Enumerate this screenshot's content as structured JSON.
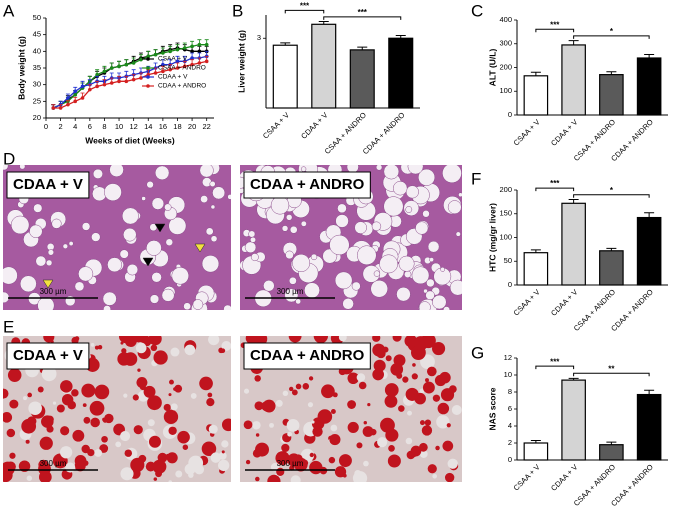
{
  "chart_data": [
    {
      "type": "line",
      "panel": "A",
      "x_label": "Weeks of diet (Weeks)",
      "y_label": "Body weight (g)",
      "x": [
        1,
        2,
        3,
        4,
        5,
        6,
        7,
        8,
        9,
        10,
        11,
        12,
        13,
        14,
        15,
        16,
        17,
        18,
        19,
        20,
        21,
        22
      ],
      "xlim": [
        0,
        23
      ],
      "xticks": [
        0,
        2,
        4,
        6,
        8,
        10,
        12,
        14,
        16,
        18,
        20,
        22
      ],
      "ylim": [
        20,
        50
      ],
      "yticks": [
        20,
        25,
        30,
        35,
        40,
        45,
        50
      ],
      "legend": "lower right",
      "series": [
        {
          "name": "CSAA + V",
          "color": "#000000",
          "values": [
            23,
            24,
            25.5,
            27,
            29,
            31,
            32.5,
            33.5,
            35,
            35.5,
            36,
            37,
            38,
            38.5,
            39,
            40,
            40.5,
            41,
            40.5,
            40,
            40,
            40
          ],
          "errors": [
            1,
            1,
            1.2,
            1.2,
            1.5,
            1.5,
            1.5,
            1.5,
            1.5,
            1.5,
            1.5,
            1.5,
            1.5,
            1.5,
            1.5,
            1.5,
            1.5,
            1.5,
            1.5,
            1.5,
            1.5,
            1.5
          ]
        },
        {
          "name": "CSAA + ANDRO",
          "color": "#1a8a1a",
          "values": [
            23,
            24,
            25,
            27,
            29,
            31,
            33,
            34,
            35,
            35.5,
            36,
            36.5,
            37.5,
            38.5,
            39,
            39.5,
            40,
            40.5,
            41,
            41.5,
            42,
            42
          ],
          "errors": [
            1,
            1,
            1.2,
            1.2,
            1.5,
            1.5,
            1.5,
            1.5,
            1.5,
            1.5,
            1.5,
            1.5,
            1.5,
            1.5,
            1.5,
            1.5,
            1.5,
            1.5,
            1.5,
            1.5,
            1.5,
            1.5
          ]
        },
        {
          "name": "CDAA + V",
          "color": "#1f2fd0",
          "values": [
            23,
            24,
            26,
            28,
            29.5,
            30,
            31,
            31,
            32,
            32,
            32.5,
            33,
            33.5,
            34,
            35,
            36,
            36,
            37,
            37,
            38,
            38,
            38.5
          ],
          "errors": [
            1,
            1,
            1.2,
            1.2,
            1.5,
            1.5,
            1.5,
            1.5,
            1.5,
            1.5,
            1.5,
            1.5,
            1.5,
            1.5,
            1.5,
            1.5,
            1.5,
            1.5,
            1.5,
            1.5,
            1.5,
            1.5
          ]
        },
        {
          "name": "CDAA + ANDRO",
          "color": "#d42020",
          "values": [
            23,
            23,
            24,
            25,
            26,
            28.5,
            29.5,
            30,
            30.5,
            31,
            31,
            31.5,
            32,
            33,
            33.5,
            34,
            34.5,
            35,
            35.5,
            36,
            36.5,
            37
          ],
          "errors": [
            1,
            1,
            1.2,
            1.2,
            1.5,
            1.5,
            1.5,
            1.5,
            1.5,
            1.5,
            1.5,
            1.5,
            1.5,
            1.5,
            1.5,
            1.5,
            1.5,
            1.5,
            1.5,
            1.5,
            1.5,
            1.5
          ]
        }
      ]
    },
    {
      "type": "bar",
      "panel": "B",
      "y_label": "Liver weight (g)",
      "categories": [
        "CSAA + V",
        "CDAA + V",
        "CSAA + ANDRO",
        "CDAA + ANDRO"
      ],
      "values": [
        2.7,
        3.6,
        2.5,
        3.0
      ],
      "errors": [
        0.1,
        0.12,
        0.12,
        0.12
      ],
      "colors": [
        "#ffffff",
        "#d4d4d4",
        "#5a5a5a",
        "#000000"
      ],
      "ylim": [
        0,
        4
      ],
      "yticks": [
        3
      ],
      "brackets": [
        {
          "between": [
            "CSAA + V",
            "CDAA + V"
          ],
          "label": "***"
        },
        {
          "between": [
            "CDAA + V",
            "CDAA + ANDRO"
          ],
          "label": "***"
        }
      ]
    },
    {
      "type": "bar",
      "panel": "C",
      "y_label": "ALT (U/L)",
      "categories": [
        "CSAA + V",
        "CDAA + V",
        "CSAA + ANDRO",
        "CDAA + ANDRO"
      ],
      "values": [
        165,
        295,
        170,
        240
      ],
      "errors": [
        15,
        18,
        12,
        15
      ],
      "colors": [
        "#ffffff",
        "#d4d4d4",
        "#5a5a5a",
        "#000000"
      ],
      "ylim": [
        0,
        400
      ],
      "yticks": [
        0,
        100,
        200,
        300,
        400
      ],
      "brackets": [
        {
          "between": [
            "CSAA + V",
            "CDAA + V"
          ],
          "label": "***"
        },
        {
          "between": [
            "CDAA + V",
            "CDAA + ANDRO"
          ],
          "label": "*"
        }
      ]
    },
    {
      "type": "bar",
      "panel": "F",
      "y_label": "HTC (mg/gr liver)",
      "categories": [
        "CSAA + V",
        "CDAA + V",
        "CSAA + ANDRO",
        "CDAA + ANDRO"
      ],
      "values": [
        68,
        172,
        72,
        142
      ],
      "errors": [
        6,
        8,
        5,
        10
      ],
      "colors": [
        "#ffffff",
        "#d4d4d4",
        "#5a5a5a",
        "#000000"
      ],
      "ylim": [
        0,
        200
      ],
      "yticks": [
        0,
        50,
        100,
        150,
        200
      ],
      "brackets": [
        {
          "between": [
            "CSAA + V",
            "CDAA + V"
          ],
          "label": "***"
        },
        {
          "between": [
            "CDAA + V",
            "CDAA + ANDRO"
          ],
          "label": "*"
        }
      ]
    },
    {
      "type": "bar",
      "panel": "G",
      "y_label": "NAS score",
      "categories": [
        "CSAA + V",
        "CDAA + V",
        "CSAA + ANDRO",
        "CDAA + ANDRO"
      ],
      "values": [
        2.0,
        9.4,
        1.8,
        7.7
      ],
      "errors": [
        0.3,
        0.2,
        0.3,
        0.5
      ],
      "colors": [
        "#ffffff",
        "#d4d4d4",
        "#5a5a5a",
        "#000000"
      ],
      "ylim": [
        0,
        12
      ],
      "yticks": [
        0,
        2,
        4,
        6,
        8,
        10,
        12
      ],
      "brackets": [
        {
          "between": [
            "CSAA + V",
            "CDAA + V"
          ],
          "label": "***"
        },
        {
          "between": [
            "CDAA + V",
            "CDAA + ANDRO"
          ],
          "label": "**"
        }
      ]
    }
  ],
  "images": [
    {
      "panel": "D",
      "items": [
        {
          "label": "CDAA + V",
          "scale": "300 µm"
        },
        {
          "label": "CDAA + ANDRO",
          "scale": "300 µm"
        }
      ]
    },
    {
      "panel": "E",
      "items": [
        {
          "label": "CDAA + V",
          "scale": "300 µm"
        },
        {
          "label": "CDAA + ANDRO",
          "scale": "300 µm"
        }
      ]
    }
  ]
}
